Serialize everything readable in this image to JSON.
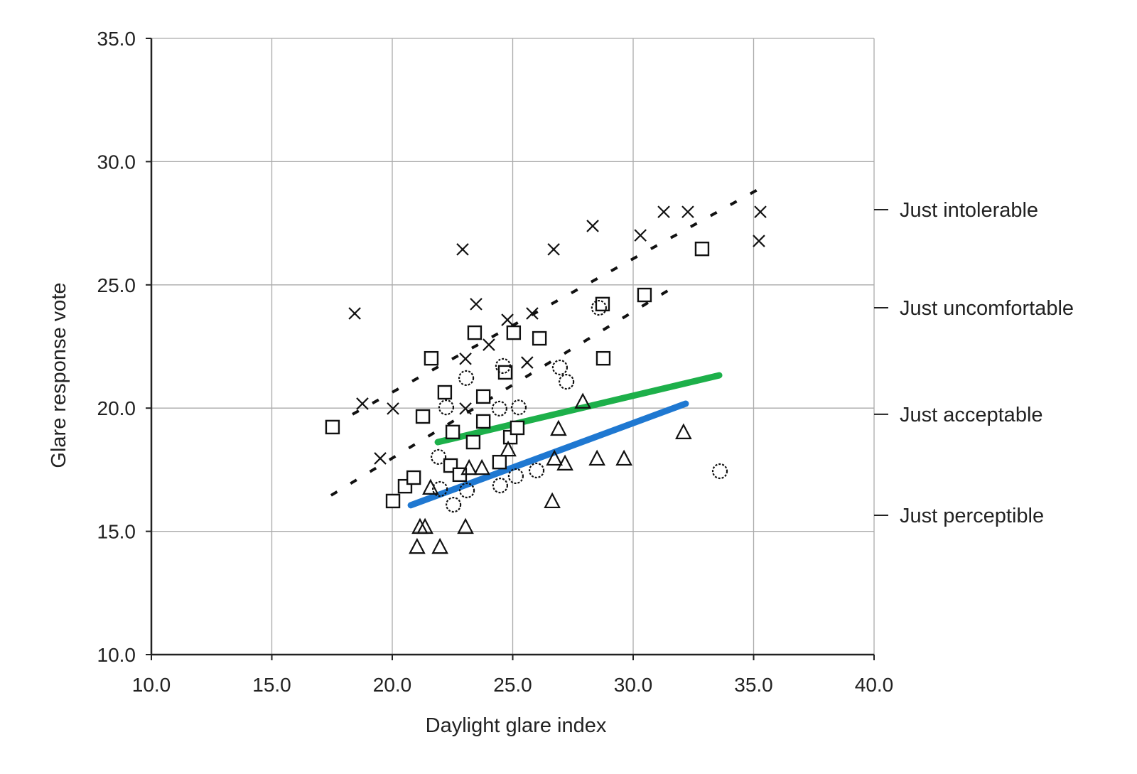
{
  "chart_data": {
    "type": "scatter",
    "title": "",
    "xlabel": "Daylight glare index",
    "ylabel": "Glare response vote",
    "xlim": [
      10,
      40
    ],
    "ylim": [
      10,
      35
    ],
    "xticks": [
      "10.0",
      "15.0",
      "20.0",
      "25.0",
      "30.0",
      "35.0",
      "40.0"
    ],
    "yticks": [
      "10.0",
      "15.0",
      "20.0",
      "25.0",
      "30.0",
      "35.0"
    ],
    "grid": true,
    "series": [
      {
        "name": "cross",
        "marker": "x",
        "points": [
          [
            18.44,
            23.84
          ],
          [
            22.92,
            26.44
          ],
          [
            26.7,
            26.44
          ],
          [
            28.32,
            27.39
          ],
          [
            30.3,
            27.01
          ],
          [
            31.27,
            27.96
          ],
          [
            32.27,
            27.96
          ],
          [
            35.28,
            27.96
          ],
          [
            35.22,
            26.78
          ],
          [
            23.48,
            24.22
          ],
          [
            24.01,
            22.57
          ],
          [
            24.78,
            23.58
          ],
          [
            25.81,
            23.84
          ],
          [
            25.6,
            21.85
          ],
          [
            23.04,
            22.0
          ],
          [
            23.04,
            19.98
          ],
          [
            20.03,
            19.98
          ],
          [
            19.5,
            17.96
          ],
          [
            18.76,
            20.18
          ]
        ]
      },
      {
        "name": "square",
        "marker": "square",
        "points": [
          [
            17.52,
            19.23
          ],
          [
            21.27,
            19.66
          ],
          [
            21.62,
            22.02
          ],
          [
            22.18,
            20.64
          ],
          [
            23.42,
            23.06
          ],
          [
            23.78,
            20.47
          ],
          [
            24.69,
            21.45
          ],
          [
            25.04,
            23.06
          ],
          [
            26.11,
            22.83
          ],
          [
            28.73,
            24.22
          ],
          [
            28.76,
            22.02
          ],
          [
            30.47,
            24.59
          ],
          [
            32.86,
            26.46
          ],
          [
            23.78,
            19.46
          ],
          [
            23.36,
            18.62
          ],
          [
            22.42,
            17.67
          ],
          [
            24.9,
            18.82
          ],
          [
            24.45,
            17.81
          ],
          [
            25.19,
            19.2
          ],
          [
            20.03,
            16.23
          ],
          [
            20.53,
            16.83
          ],
          [
            20.89,
            17.18
          ],
          [
            22.51,
            19.03
          ],
          [
            22.8,
            17.3
          ]
        ]
      },
      {
        "name": "circle",
        "marker": "circle",
        "points": [
          [
            23.07,
            21.22
          ],
          [
            26.96,
            21.65
          ],
          [
            27.23,
            21.07
          ],
          [
            28.58,
            24.07
          ],
          [
            33.6,
            17.44
          ],
          [
            21.92,
            18.02
          ],
          [
            22.24,
            20.03
          ],
          [
            24.45,
            19.98
          ],
          [
            25.25,
            20.03
          ],
          [
            24.6,
            21.71
          ],
          [
            25.99,
            17.47
          ],
          [
            25.13,
            17.24
          ],
          [
            24.48,
            16.86
          ],
          [
            22.54,
            16.08
          ],
          [
            21.98,
            16.72
          ],
          [
            23.1,
            16.66
          ]
        ]
      },
      {
        "name": "triangle",
        "marker": "triangle",
        "points": [
          [
            21.03,
            14.38
          ],
          [
            21.98,
            14.38
          ],
          [
            21.15,
            15.19
          ],
          [
            21.36,
            15.19
          ],
          [
            23.04,
            15.19
          ],
          [
            26.64,
            16.23
          ],
          [
            26.9,
            19.17
          ],
          [
            28.5,
            17.96
          ],
          [
            29.62,
            17.96
          ],
          [
            32.09,
            19.03
          ],
          [
            27.17,
            17.76
          ],
          [
            23.19,
            17.58
          ],
          [
            23.72,
            17.58
          ],
          [
            21.59,
            16.78
          ],
          [
            24.81,
            18.33
          ],
          [
            27.91,
            20.27
          ],
          [
            26.73,
            17.96
          ]
        ]
      }
    ],
    "lines": [
      {
        "name": "trend-upper-dotted",
        "style": "dotted",
        "color": "#111111",
        "points": [
          [
            18.35,
            19.75
          ],
          [
            35.22,
            28.89
          ]
        ]
      },
      {
        "name": "trend-middle-dotted",
        "style": "dotted",
        "color": "#111111",
        "points": [
          [
            17.46,
            16.46
          ],
          [
            31.68,
            24.91
          ]
        ]
      },
      {
        "name": "trend-green",
        "style": "solid",
        "color": "#1db04a",
        "points": [
          [
            21.89,
            18.62
          ],
          [
            33.57,
            21.33
          ]
        ]
      },
      {
        "name": "trend-blue",
        "style": "solid",
        "color": "#1f78d1",
        "points": [
          [
            20.77,
            16.06
          ],
          [
            32.18,
            20.18
          ]
        ]
      }
    ],
    "annotations": [
      {
        "label": "Just intolerable",
        "y": 28.05
      },
      {
        "label": "Just uncomfortable",
        "y": 24.07
      },
      {
        "label": "Just acceptable",
        "y": 19.75
      },
      {
        "label": "Just perceptible",
        "y": 15.65
      }
    ]
  }
}
